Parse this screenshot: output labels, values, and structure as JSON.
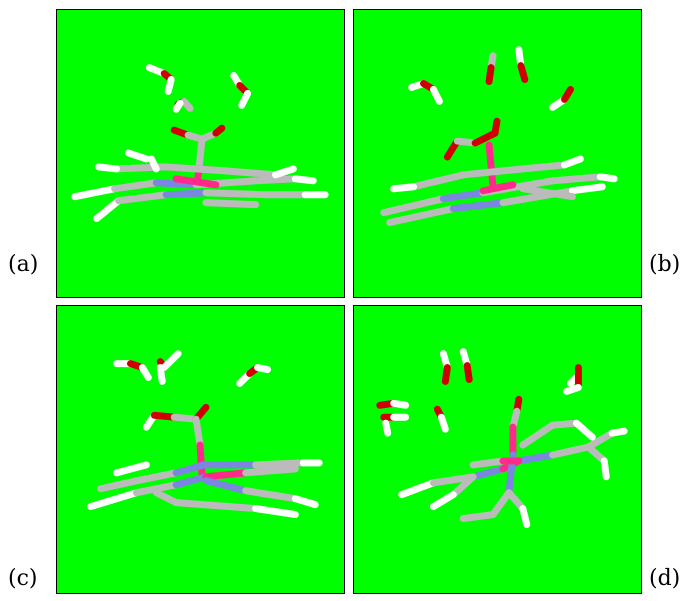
{
  "figure": {
    "background_color": "#00ff00",
    "atom_colors": {
      "carbon": "#bbbbbb",
      "nitrogen": "#7a86e0",
      "oxygen": "#e00000",
      "hydrogen": "#ffffff",
      "metal": "#ff2a8a"
    },
    "panels": [
      {
        "label": "(a)"
      },
      {
        "label": "(b)"
      },
      {
        "label": "(c)"
      },
      {
        "label": "(d)"
      }
    ]
  }
}
